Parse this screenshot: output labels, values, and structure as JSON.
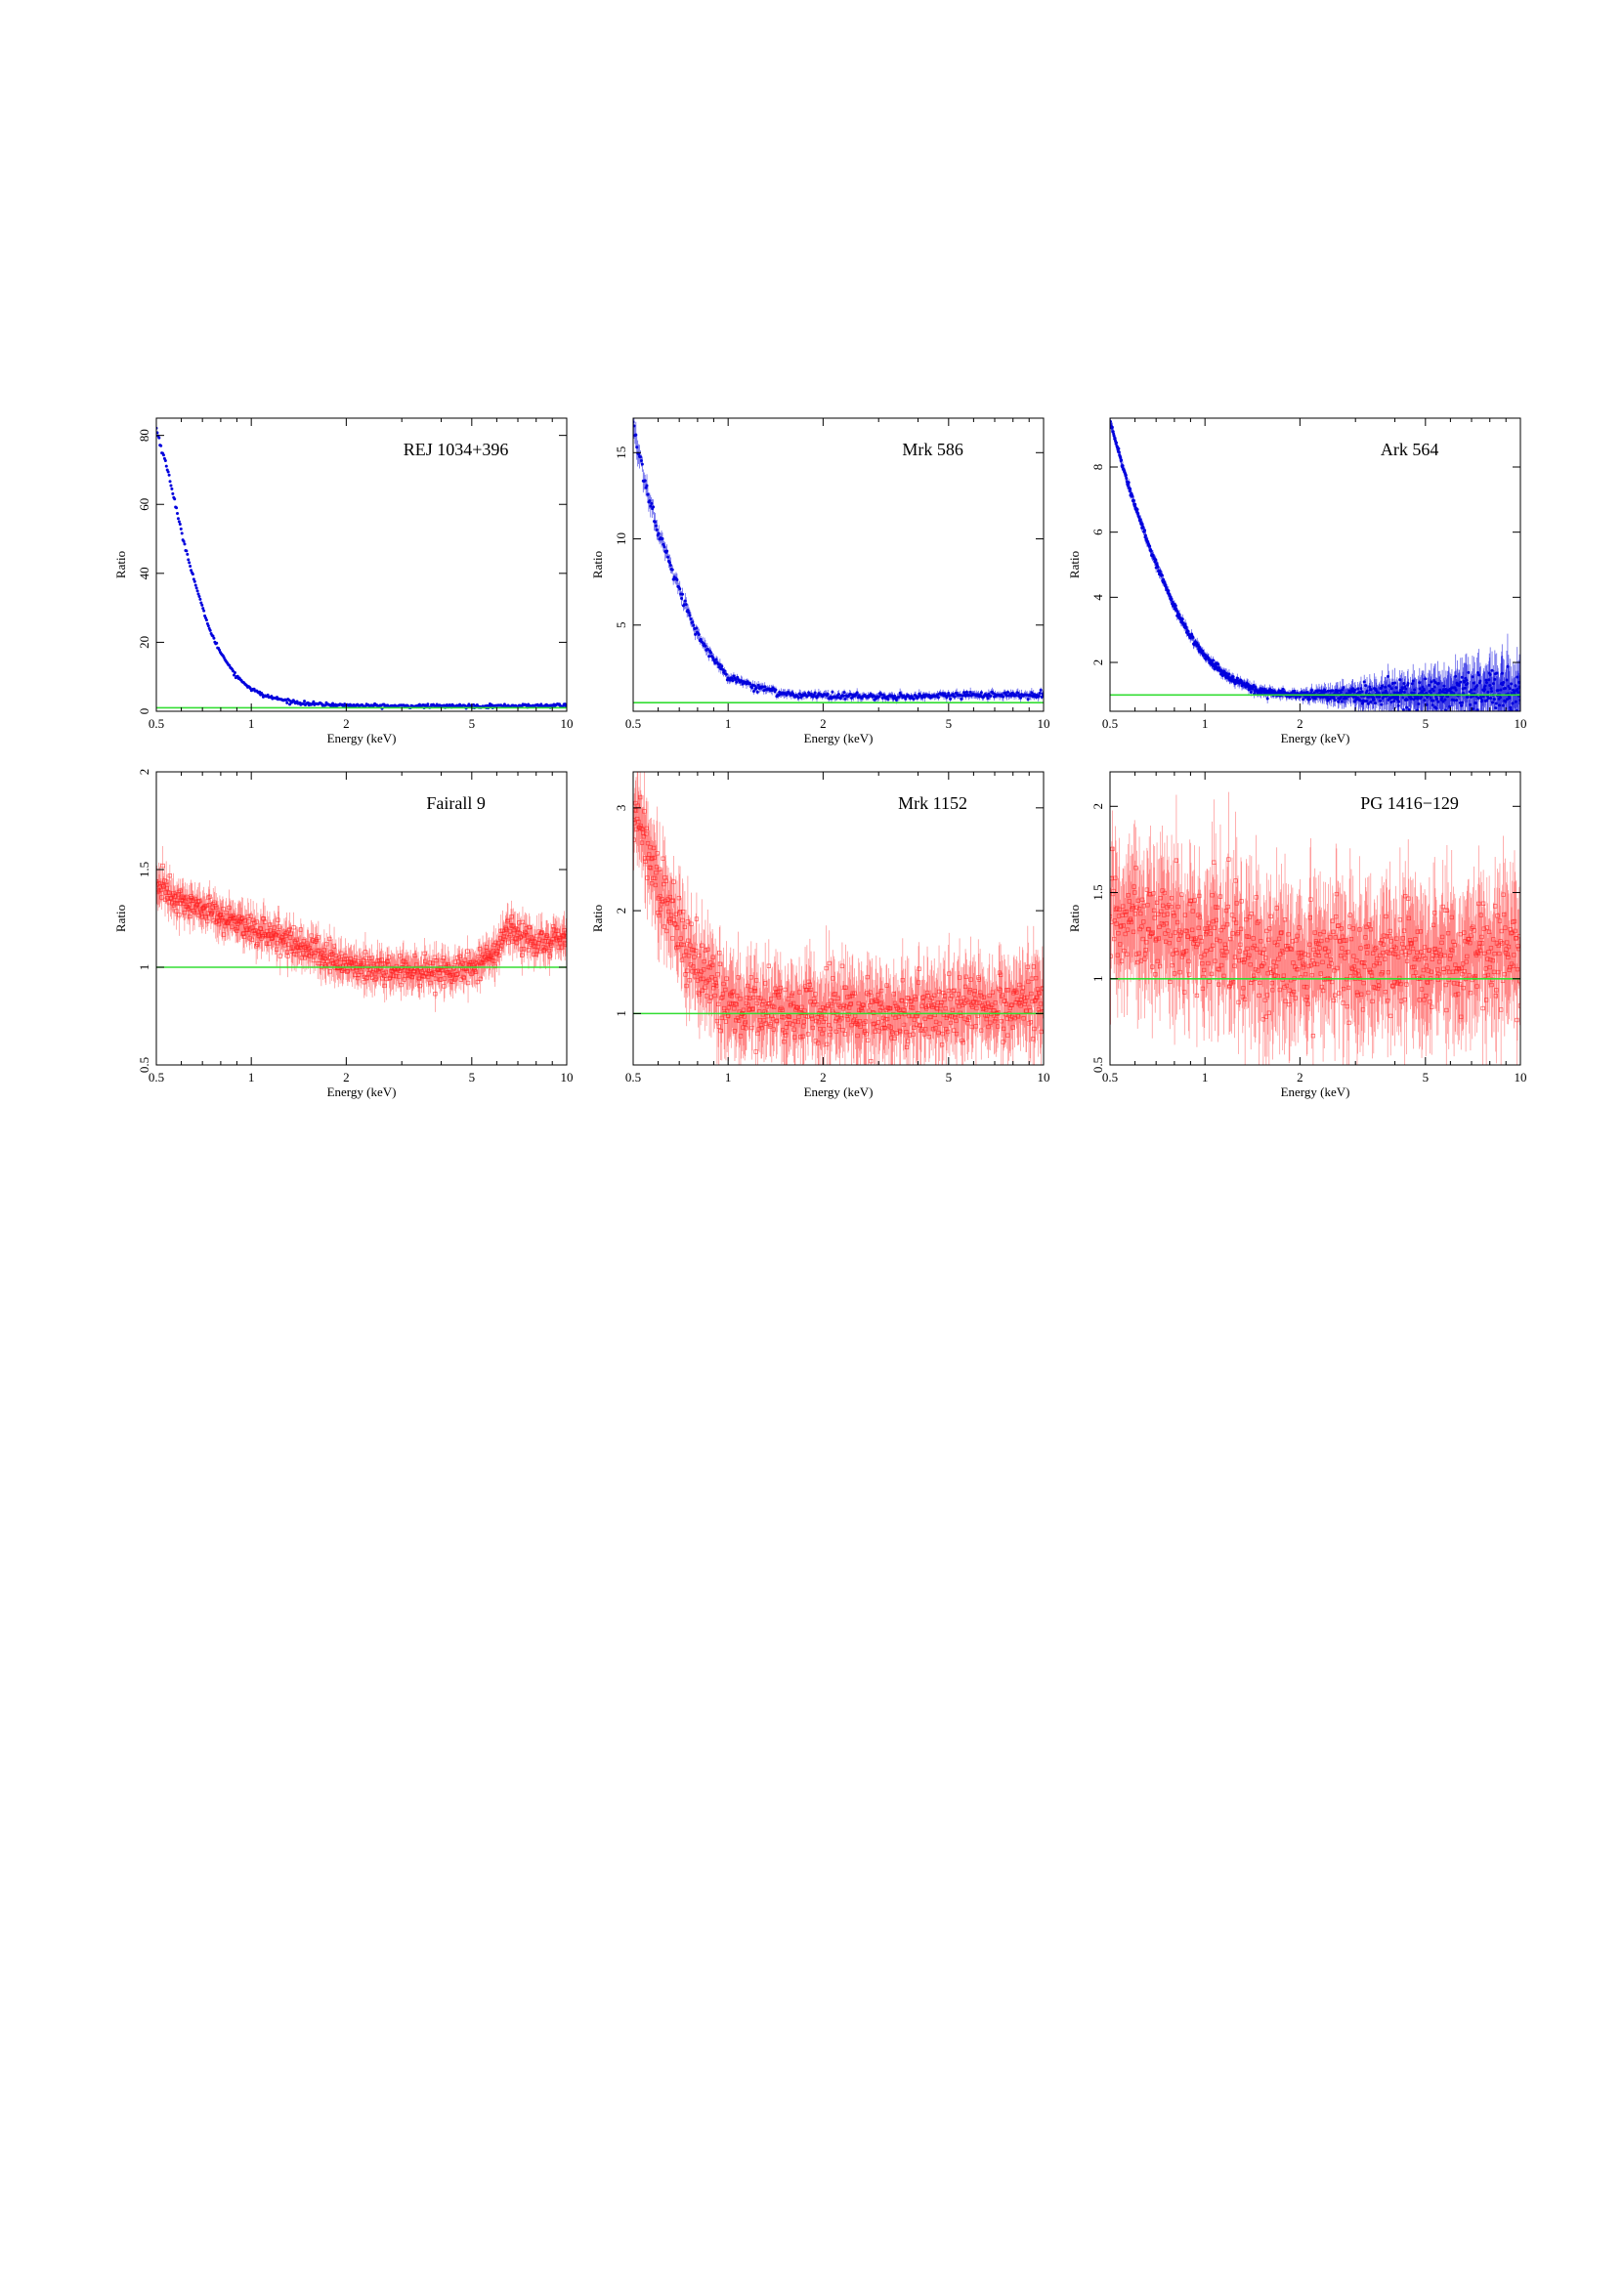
{
  "colors": {
    "model_line": "#33dd33",
    "series_blue": "#0000dd",
    "series_red": "#ff2020",
    "axis": "#000000"
  },
  "chart_data": [
    {
      "type": "scatter",
      "name": "REJ 1034+396",
      "title": "REJ 1034+396",
      "xlabel": "Energy (keV)",
      "ylabel": "Ratio",
      "xscale": "log",
      "xlim": [
        0.5,
        10
      ],
      "ylim": [
        0,
        85
      ],
      "xticks": [
        "0.5",
        "1",
        "2",
        "5",
        "10"
      ],
      "yticks": [
        "0",
        "20",
        "40",
        "60",
        "80"
      ],
      "ytick_values": [
        0,
        20,
        40,
        60,
        80
      ],
      "model_line_y": 1,
      "color": "blue",
      "style": "dots",
      "x": [
        0.5,
        0.52,
        0.55,
        0.6,
        0.65,
        0.7,
        0.75,
        0.8,
        0.9,
        1.0,
        1.1,
        1.3,
        1.5,
        2,
        3,
        5,
        8,
        10
      ],
      "values": [
        82,
        76,
        68,
        52,
        40,
        30,
        22,
        17,
        10,
        6.5,
        4.5,
        3,
        2.2,
        1.7,
        1.5,
        1.5,
        1.6,
        1.7
      ],
      "scatter_frac": 0.01
    },
    {
      "type": "scatter",
      "name": "Mrk 586",
      "title": "Mrk 586",
      "xlabel": "Energy (keV)",
      "ylabel": "Ratio",
      "xscale": "log",
      "xlim": [
        0.5,
        10
      ],
      "ylim": [
        0,
        17
      ],
      "xticks": [
        "0.5",
        "1",
        "2",
        "5",
        "10"
      ],
      "yticks": [
        "5",
        "10",
        "15"
      ],
      "ytick_values": [
        5,
        10,
        15
      ],
      "model_line_y": 0.5,
      "color": "blue",
      "style": "errorbars",
      "x": [
        0.5,
        0.55,
        0.6,
        0.7,
        0.8,
        0.9,
        1.0,
        1.2,
        1.5,
        2,
        3,
        5,
        10
      ],
      "values": [
        16.5,
        13,
        10.5,
        7,
        4.5,
        3,
        2,
        1.5,
        1,
        0.9,
        0.85,
        0.9,
        1
      ],
      "scatter_frac": 0.06
    },
    {
      "type": "scatter",
      "name": "Ark 564",
      "title": "Ark 564",
      "xlabel": "Energy (keV)",
      "ylabel": "Ratio",
      "xscale": "log",
      "xlim": [
        0.5,
        10
      ],
      "ylim": [
        0.5,
        9.5
      ],
      "xticks": [
        "0.5",
        "1",
        "2",
        "5",
        "10"
      ],
      "yticks": [
        "2",
        "4",
        "6",
        "8"
      ],
      "ytick_values": [
        2,
        4,
        6,
        8
      ],
      "model_line_y": 1,
      "color": "blue",
      "style": "dots_widening",
      "x": [
        0.5,
        0.55,
        0.6,
        0.7,
        0.8,
        0.9,
        1.0,
        1.2,
        1.5,
        2,
        3,
        5,
        8,
        10
      ],
      "values": [
        9.4,
        8,
        6.8,
        5,
        3.7,
        2.8,
        2.2,
        1.5,
        1.1,
        1,
        1,
        1,
        1.05,
        1.05
      ],
      "scatter_frac": 0.05
    },
    {
      "type": "scatter",
      "name": "Fairall 9",
      "title": "Fairall 9",
      "xlabel": "Energy (keV)",
      "ylabel": "Ratio",
      "xscale": "log",
      "xlim": [
        0.5,
        10
      ],
      "ylim": [
        0.5,
        2
      ],
      "xticks": [
        "0.5",
        "1",
        "2",
        "5",
        "10"
      ],
      "yticks": [
        "0.5",
        "1",
        "1.5",
        "2"
      ],
      "ytick_values": [
        0.5,
        1,
        1.5,
        2
      ],
      "model_line_y": 1,
      "color": "red",
      "style": "errorbars",
      "x": [
        0.5,
        0.6,
        0.7,
        0.8,
        1.0,
        1.3,
        1.6,
        2,
        2.5,
        3,
        4,
        5,
        6,
        6.5,
        8,
        10
      ],
      "values": [
        1.42,
        1.33,
        1.29,
        1.27,
        1.2,
        1.13,
        1.07,
        1.02,
        0.99,
        0.98,
        0.97,
        1.0,
        1.08,
        1.2,
        1.12,
        1.15
      ],
      "scatter_frac": 0.04
    },
    {
      "type": "scatter",
      "name": "Mrk 1152",
      "title": "Mrk 1152",
      "xlabel": "Energy (keV)",
      "ylabel": "Ratio",
      "xscale": "log",
      "xlim": [
        0.5,
        10
      ],
      "ylim": [
        0.5,
        3.35
      ],
      "xticks": [
        "0.5",
        "1",
        "2",
        "5",
        "10"
      ],
      "yticks": [
        "1",
        "2",
        "3"
      ],
      "ytick_values": [
        1,
        2,
        3
      ],
      "model_line_y": 1,
      "color": "red",
      "style": "errorbars",
      "x": [
        0.5,
        0.55,
        0.6,
        0.7,
        0.8,
        0.9,
        1.0,
        1.2,
        1.5,
        2,
        3,
        5,
        10
      ],
      "values": [
        3.0,
        2.7,
        2.3,
        1.8,
        1.45,
        1.25,
        1.1,
        1.05,
        1.0,
        1.0,
        1.02,
        1.05,
        1.1
      ],
      "scatter_frac": 0.09
    },
    {
      "type": "scatter",
      "name": "PG 1416−129",
      "title": "PG 1416−129",
      "xlabel": "Energy (keV)",
      "ylabel": "Ratio",
      "xscale": "log",
      "xlim": [
        0.5,
        10
      ],
      "ylim": [
        0.5,
        2.2
      ],
      "xticks": [
        "0.5",
        "1",
        "2",
        "5",
        "10"
      ],
      "yticks": [
        "0.5",
        "1",
        "1.5",
        "2"
      ],
      "ytick_values": [
        0.5,
        1,
        1.5,
        2
      ],
      "model_line_y": 1,
      "color": "red",
      "style": "errorbars",
      "x": [
        0.5,
        0.7,
        1.0,
        1.5,
        2,
        3,
        5,
        7,
        10
      ],
      "values": [
        1.4,
        1.3,
        1.2,
        1.15,
        1.1,
        1.1,
        1.1,
        1.12,
        1.15
      ],
      "scatter_frac": 0.14
    }
  ]
}
